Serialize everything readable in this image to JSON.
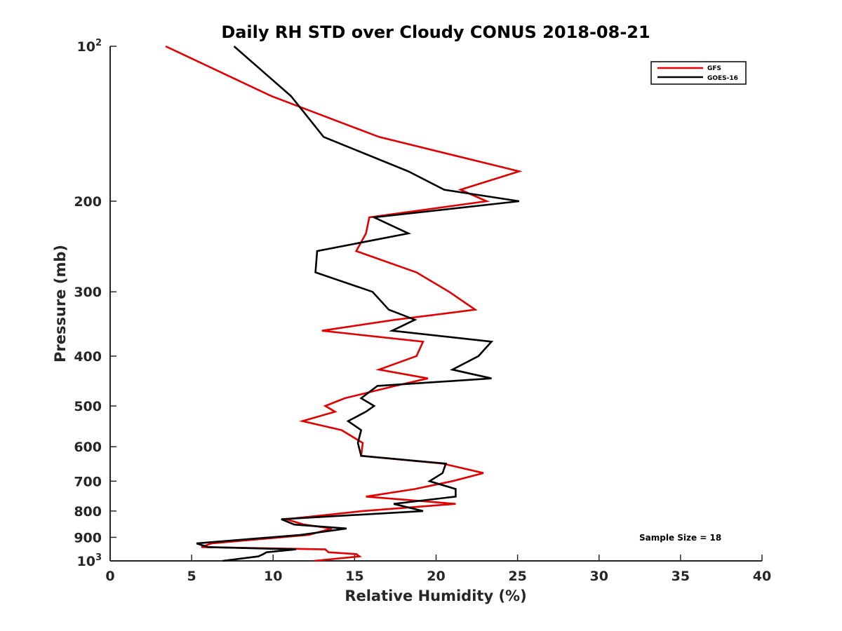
{
  "chart_data": {
    "type": "line",
    "title": "Daily RH STD over Cloudy CONUS 2018-08-21",
    "xlabel": "Relative Humidity (%)",
    "ylabel": "Pressure (mb)",
    "xlim": [
      0,
      40
    ],
    "ylim": [
      100,
      1000
    ],
    "y_scale": "log",
    "y_reversed": true,
    "x_ticks": [
      0,
      5,
      10,
      15,
      20,
      25,
      30,
      35,
      40
    ],
    "y_ticks": [
      {
        "value": 100,
        "base": "10",
        "exp": "2"
      },
      {
        "value": 200,
        "label": "200"
      },
      {
        "value": 300,
        "label": "300"
      },
      {
        "value": 400,
        "label": "400"
      },
      {
        "value": 500,
        "label": "500"
      },
      {
        "value": 600,
        "label": "600"
      },
      {
        "value": 700,
        "label": "700"
      },
      {
        "value": 800,
        "label": "800"
      },
      {
        "value": 900,
        "label": "900"
      },
      {
        "value": 1000,
        "base": "10",
        "exp": "3"
      }
    ],
    "grid": false,
    "legend_position": "top-right",
    "annotation": "Sample Size = 18",
    "series": [
      {
        "name": "GFS",
        "color": "#e00000",
        "points": [
          [
            3.4,
            100
          ],
          [
            9.9,
            125
          ],
          [
            16.5,
            150
          ],
          [
            25.1,
            175
          ],
          [
            21.5,
            190
          ],
          [
            23.1,
            200
          ],
          [
            15.9,
            215
          ],
          [
            15.7,
            231
          ],
          [
            15.1,
            250
          ],
          [
            18.8,
            275
          ],
          [
            20.8,
            300
          ],
          [
            22.4,
            325
          ],
          [
            17.5,
            340
          ],
          [
            13.0,
            357
          ],
          [
            19.2,
            375
          ],
          [
            18.8,
            400
          ],
          [
            16.5,
            425
          ],
          [
            19.5,
            442
          ],
          [
            17.5,
            457
          ],
          [
            14.4,
            483
          ],
          [
            13.2,
            500
          ],
          [
            13.8,
            513
          ],
          [
            11.8,
            535
          ],
          [
            14.2,
            557
          ],
          [
            15.5,
            590
          ],
          [
            15.4,
            625
          ],
          [
            20.4,
            647
          ],
          [
            22.9,
            675
          ],
          [
            21.0,
            700
          ],
          [
            18.7,
            725
          ],
          [
            15.7,
            750
          ],
          [
            21.2,
            775
          ],
          [
            15.5,
            800
          ],
          [
            10.8,
            830
          ],
          [
            11.9,
            850
          ],
          [
            13.6,
            865
          ],
          [
            12.2,
            890
          ],
          [
            6.2,
            925
          ],
          [
            5.6,
            940
          ],
          [
            13.2,
            950
          ],
          [
            13.4,
            962
          ],
          [
            15.1,
            970
          ],
          [
            15.3,
            980
          ],
          [
            12.5,
            1000
          ]
        ]
      },
      {
        "name": "GOES-16",
        "color": "#000000",
        "points": [
          [
            7.6,
            100
          ],
          [
            11.1,
            125
          ],
          [
            13.1,
            150
          ],
          [
            18.3,
            175
          ],
          [
            20.5,
            190
          ],
          [
            25.1,
            200
          ],
          [
            16.2,
            215
          ],
          [
            18.3,
            231
          ],
          [
            12.7,
            250
          ],
          [
            12.6,
            275
          ],
          [
            16.1,
            300
          ],
          [
            17.1,
            325
          ],
          [
            18.7,
            340
          ],
          [
            17.3,
            357
          ],
          [
            23.4,
            375
          ],
          [
            22.6,
            400
          ],
          [
            21.0,
            425
          ],
          [
            23.4,
            442
          ],
          [
            16.4,
            457
          ],
          [
            15.4,
            483
          ],
          [
            16.2,
            500
          ],
          [
            15.7,
            513
          ],
          [
            14.6,
            535
          ],
          [
            15.4,
            557
          ],
          [
            15.2,
            590
          ],
          [
            15.4,
            625
          ],
          [
            20.6,
            647
          ],
          [
            20.4,
            675
          ],
          [
            19.6,
            700
          ],
          [
            21.2,
            725
          ],
          [
            21.2,
            750
          ],
          [
            17.4,
            775
          ],
          [
            19.2,
            800
          ],
          [
            10.5,
            830
          ],
          [
            11.3,
            850
          ],
          [
            14.5,
            865
          ],
          [
            11.7,
            890
          ],
          [
            5.3,
            925
          ],
          [
            6.0,
            940
          ],
          [
            11.4,
            950
          ],
          [
            9.6,
            962
          ],
          [
            9.4,
            970
          ],
          [
            9.1,
            980
          ],
          [
            6.9,
            1000
          ]
        ]
      }
    ]
  }
}
